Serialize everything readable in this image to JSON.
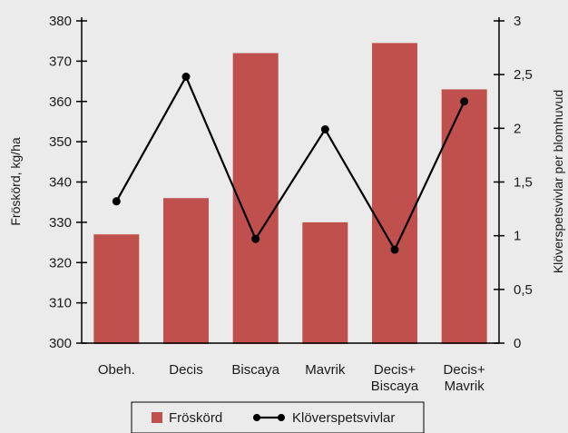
{
  "chart_data": {
    "type": "bar+line",
    "categories": [
      [
        "Obeh."
      ],
      [
        "Decis"
      ],
      [
        "Biscaya"
      ],
      [
        "Mavrik"
      ],
      [
        "Decis+",
        "Biscaya"
      ],
      [
        "Decis+",
        "Mavrik"
      ]
    ],
    "series": [
      {
        "name": "Fröskörd",
        "type": "bar",
        "axis": "left",
        "color": "#c0504d",
        "values": [
          327,
          336,
          372,
          330,
          374.5,
          363
        ]
      },
      {
        "name": "Klöverspetsvivlar",
        "type": "line",
        "axis": "right",
        "color": "#000000",
        "values": [
          1.32,
          2.48,
          0.97,
          1.99,
          0.87,
          2.25
        ]
      }
    ],
    "left_axis": {
      "label": "Fröskörd, kg/ha",
      "min": 300,
      "max": 380,
      "step": 10,
      "ticks": [
        "300",
        "310",
        "320",
        "330",
        "340",
        "350",
        "360",
        "370",
        "380"
      ]
    },
    "right_axis": {
      "label": "Klöverspetsvivlar per blomhuvud",
      "min": 0,
      "max": 3,
      "step": 0.5,
      "ticks": [
        "0",
        "0,5",
        "1",
        "1,5",
        "2",
        "2,5",
        "3"
      ]
    },
    "legend": {
      "placement": "bottom-center",
      "items": [
        {
          "label": "Fröskörd",
          "kind": "bar-swatch"
        },
        {
          "label": "Klöverspetsvivlar",
          "kind": "line-marker"
        }
      ]
    },
    "grid": false
  }
}
